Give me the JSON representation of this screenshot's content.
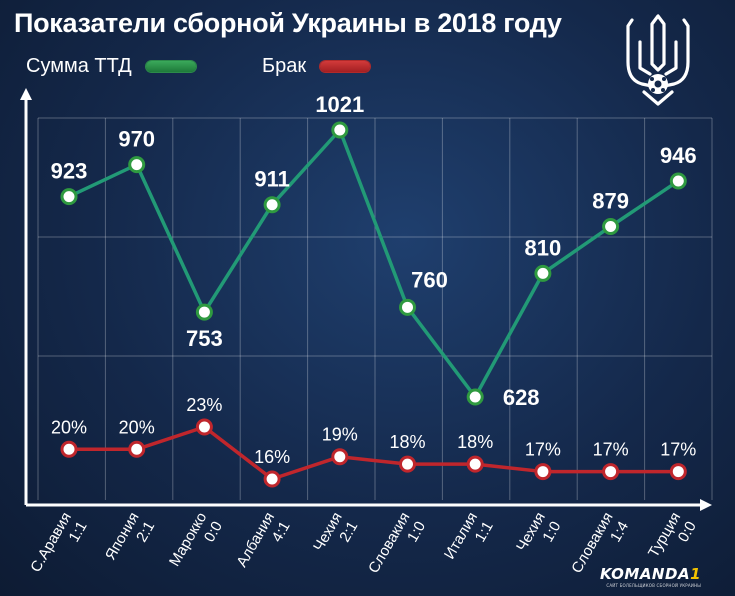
{
  "title": "Показатели сборной Украины в 2018 году",
  "legend": [
    {
      "label": "Сумма ТТД",
      "color": "#2f9a55"
    },
    {
      "label": "Брак",
      "color": "#c12a2c"
    }
  ],
  "chart_data": {
    "type": "line",
    "categories": [
      {
        "team": "С.Аравия",
        "score": "1:1"
      },
      {
        "team": "Япония",
        "score": "2:1"
      },
      {
        "team": "Марокко",
        "score": "0:0"
      },
      {
        "team": "Албания",
        "score": "4:1"
      },
      {
        "team": "Чехия",
        "score": "2:1"
      },
      {
        "team": "Словакия",
        "score": "1:0"
      },
      {
        "team": "Италия",
        "score": "1:1"
      },
      {
        "team": "Чехия",
        "score": "1:0"
      },
      {
        "team": "Словакия",
        "score": "1:4"
      },
      {
        "team": "Турция",
        "score": "0:0"
      }
    ],
    "series": [
      {
        "name": "Сумма ТТД",
        "color": "#229a76",
        "values": [
          923,
          970,
          753,
          911,
          1021,
          760,
          628,
          810,
          879,
          946
        ],
        "labels": [
          "923",
          "970",
          "753",
          "911",
          "1021",
          "760",
          "628",
          "810",
          "879",
          "946"
        ],
        "label_pos": [
          "above",
          "above",
          "below",
          "above",
          "above",
          "above-right",
          "right",
          "above",
          "above",
          "above"
        ]
      },
      {
        "name": "Брак",
        "color": "#c0262c",
        "values": [
          20,
          20,
          23,
          16,
          19,
          18,
          18,
          17,
          17,
          17
        ],
        "labels": [
          "20%",
          "20%",
          "23%",
          "16%",
          "19%",
          "18%",
          "18%",
          "17%",
          "17%",
          "17%"
        ],
        "label_pos": [
          "above",
          "above",
          "above",
          "above",
          "above",
          "above",
          "above",
          "above",
          "above",
          "above"
        ]
      }
    ],
    "grid": true
  },
  "logo": {
    "name": "KOMANDA",
    "num": "1",
    "sub": "САЙТ БОЛЕЛЬЩИКОВ СБОРНОЙ УКРАИНЫ"
  }
}
